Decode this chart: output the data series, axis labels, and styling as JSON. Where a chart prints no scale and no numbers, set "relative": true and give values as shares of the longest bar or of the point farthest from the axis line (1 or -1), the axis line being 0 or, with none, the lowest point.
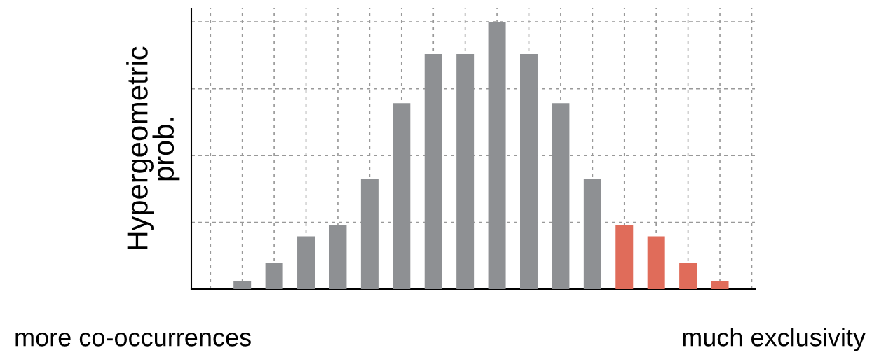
{
  "chart_data": {
    "type": "bar",
    "relative": true,
    "ylabel": "Hypergeometric\nprob.",
    "categories": [
      null,
      null,
      null,
      null,
      null,
      null,
      null,
      null,
      null,
      null,
      null,
      null,
      null,
      null,
      null,
      null
    ],
    "values": [
      0.031,
      0.098,
      0.198,
      0.24,
      0.413,
      0.696,
      0.88,
      0.88,
      1,
      0.88,
      0.696,
      0.413,
      0.24,
      0.198,
      0.098,
      0.031
    ],
    "colors": [
      "#8e9093",
      "#8e9093",
      "#8e9093",
      "#8e9093",
      "#8e9093",
      "#8e9093",
      "#8e9093",
      "#8e9093",
      "#8e9093",
      "#8e9093",
      "#8e9093",
      "#8e9093",
      "#e06c5a",
      "#e06c5a",
      "#e06c5a",
      "#e06c5a"
    ],
    "grid": true,
    "annotations": [
      "more co-occurrences",
      "much exclusivity"
    ]
  }
}
